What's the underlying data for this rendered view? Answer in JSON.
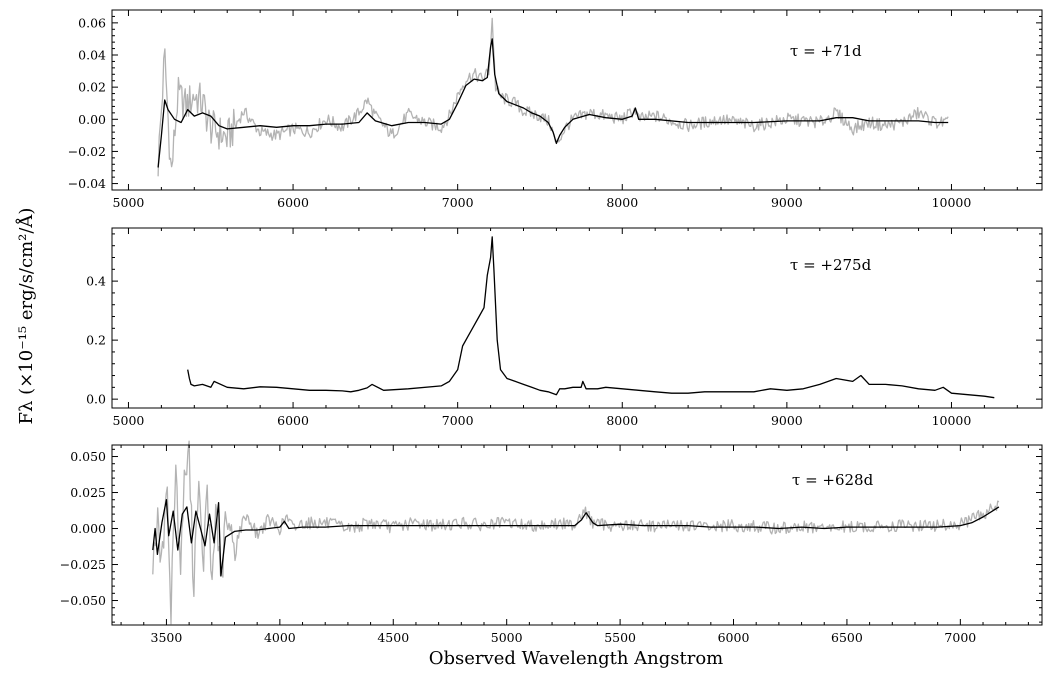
{
  "figure": {
    "ylabel": "Fλ (×10⁻¹⁵ erg/s/cm²/Å)",
    "xlabel": "Observed Wavelength Angstrom"
  },
  "colors": {
    "raw": "#b3b3b3",
    "smoothed": "#000000"
  },
  "chart_data": [
    {
      "type": "line",
      "label": "τ =  +71d",
      "xlim": [
        4900,
        10550
      ],
      "ylim": [
        -0.044,
        0.068
      ],
      "xticks": [
        5000,
        6000,
        7000,
        8000,
        9000,
        10000
      ],
      "yticks": [
        -0.04,
        -0.02,
        0.0,
        0.02,
        0.04,
        0.06
      ],
      "yticklabels": [
        "−0.04",
        "−0.02",
        "0.00",
        "0.02",
        "0.04",
        "0.06"
      ],
      "xrange": [
        5180,
        9980
      ],
      "series": [
        {
          "role": "raw",
          "x": [
            5180,
            5220,
            5260,
            5300,
            5350,
            5400,
            5450,
            5500,
            5600,
            5700,
            5800,
            5900,
            6000,
            6100,
            6200,
            6300,
            6400,
            6450,
            6500,
            6600,
            6700,
            6800,
            6900,
            6950,
            7000,
            7050,
            7100,
            7150,
            7190,
            7210,
            7230,
            7260,
            7300,
            7350,
            7400,
            7500,
            7560,
            7600,
            7650,
            7700,
            7800,
            7900,
            8000,
            8080,
            8100,
            8200,
            8400,
            8600,
            8800,
            9000,
            9200,
            9300,
            9400,
            9500,
            9600,
            9700,
            9800,
            9900,
            9980
          ],
          "y": [
            -0.028,
            0.04,
            -0.035,
            0.015,
            0.008,
            0.015,
            0.01,
            -0.005,
            -0.012,
            0.005,
            -0.008,
            -0.01,
            -0.006,
            -0.008,
            0.0,
            -0.005,
            0.004,
            0.012,
            0.002,
            -0.01,
            0.003,
            -0.002,
            -0.005,
            0.002,
            0.015,
            0.025,
            0.028,
            0.025,
            0.03,
            0.063,
            0.02,
            0.014,
            0.012,
            0.01,
            0.005,
            0.002,
            -0.002,
            -0.016,
            -0.006,
            0.0,
            0.004,
            0.002,
            0.0,
            0.006,
            0.0,
            0.002,
            -0.004,
            0.0,
            -0.004,
            0.0,
            -0.002,
            0.004,
            -0.006,
            -0.002,
            -0.004,
            -0.002,
            0.004,
            -0.002,
            -0.002
          ]
        },
        {
          "role": "smoothed",
          "x": [
            5180,
            5200,
            5220,
            5240,
            5280,
            5320,
            5360,
            5400,
            5450,
            5500,
            5550,
            5600,
            5700,
            5800,
            5900,
            6000,
            6100,
            6200,
            6300,
            6400,
            6450,
            6500,
            6600,
            6700,
            6800,
            6900,
            6950,
            7000,
            7050,
            7100,
            7150,
            7180,
            7200,
            7210,
            7225,
            7250,
            7300,
            7350,
            7400,
            7450,
            7500,
            7550,
            7580,
            7600,
            7620,
            7650,
            7700,
            7800,
            7900,
            8000,
            8060,
            8080,
            8100,
            8200,
            8400,
            8600,
            8800,
            9000,
            9200,
            9300,
            9400,
            9500,
            9600,
            9700,
            9800,
            9900,
            9980
          ],
          "y": [
            -0.03,
            -0.01,
            0.012,
            0.006,
            0.0,
            -0.002,
            0.006,
            0.002,
            0.004,
            0.002,
            -0.004,
            -0.006,
            -0.005,
            -0.004,
            -0.005,
            -0.004,
            -0.004,
            -0.003,
            -0.003,
            -0.002,
            0.004,
            -0.001,
            -0.004,
            -0.002,
            -0.002,
            -0.003,
            0.0,
            0.01,
            0.021,
            0.025,
            0.024,
            0.026,
            0.045,
            0.05,
            0.028,
            0.016,
            0.011,
            0.009,
            0.007,
            0.004,
            0.002,
            -0.002,
            -0.008,
            -0.015,
            -0.01,
            -0.005,
            0.0,
            0.003,
            0.001,
            0.0,
            0.002,
            0.007,
            0.0,
            0.0,
            -0.002,
            -0.002,
            -0.002,
            -0.001,
            -0.001,
            0.001,
            0.001,
            -0.001,
            -0.001,
            -0.001,
            -0.001,
            -0.002,
            -0.002
          ]
        }
      ]
    },
    {
      "type": "line",
      "label": "τ =  +275d",
      "xlim": [
        4900,
        10550
      ],
      "ylim": [
        -0.03,
        0.58
      ],
      "xticks": [
        5000,
        6000,
        7000,
        8000,
        9000,
        10000
      ],
      "yticks": [
        0.0,
        0.2,
        0.4
      ],
      "yticklabels": [
        "0.0",
        "0.2",
        "0.4"
      ],
      "xrange": [
        5360,
        10260
      ],
      "series": [
        {
          "role": "smoothed",
          "x": [
            5360,
            5370,
            5380,
            5400,
            5450,
            5500,
            5520,
            5600,
            5700,
            5800,
            5900,
            6000,
            6100,
            6200,
            6300,
            6350,
            6400,
            6450,
            6480,
            6550,
            6700,
            6900,
            6950,
            7000,
            7030,
            7060,
            7100,
            7130,
            7160,
            7180,
            7200,
            7210,
            7220,
            7240,
            7260,
            7300,
            7350,
            7400,
            7450,
            7500,
            7550,
            7600,
            7620,
            7650,
            7700,
            7750,
            7760,
            7780,
            7850,
            7900,
            8000,
            8100,
            8200,
            8300,
            8400,
            8500,
            8600,
            8700,
            8800,
            8900,
            9000,
            9100,
            9200,
            9300,
            9400,
            9450,
            9500,
            9600,
            9700,
            9800,
            9900,
            9950,
            10000,
            10100,
            10200,
            10260
          ],
          "y": [
            0.1,
            0.07,
            0.05,
            0.045,
            0.05,
            0.04,
            0.06,
            0.04,
            0.035,
            0.042,
            0.04,
            0.035,
            0.03,
            0.03,
            0.028,
            0.025,
            0.03,
            0.038,
            0.05,
            0.03,
            0.035,
            0.045,
            0.06,
            0.1,
            0.18,
            0.21,
            0.25,
            0.28,
            0.31,
            0.42,
            0.48,
            0.55,
            0.44,
            0.2,
            0.1,
            0.07,
            0.06,
            0.05,
            0.04,
            0.03,
            0.025,
            0.015,
            0.035,
            0.035,
            0.04,
            0.04,
            0.06,
            0.035,
            0.035,
            0.04,
            0.035,
            0.03,
            0.025,
            0.02,
            0.02,
            0.025,
            0.025,
            0.025,
            0.025,
            0.035,
            0.03,
            0.035,
            0.05,
            0.07,
            0.06,
            0.08,
            0.05,
            0.05,
            0.045,
            0.035,
            0.03,
            0.04,
            0.02,
            0.015,
            0.01,
            0.005
          ]
        }
      ]
    },
    {
      "type": "line",
      "label": "τ =  +628d",
      "xlim": [
        3260,
        7360
      ],
      "ylim": [
        -0.067,
        0.058
      ],
      "xticks": [
        3500,
        4000,
        4500,
        5000,
        5500,
        6000,
        6500,
        7000
      ],
      "yticks": [
        -0.05,
        -0.025,
        0.0,
        0.025,
        0.05
      ],
      "yticklabels": [
        "−0.050",
        "−0.025",
        "0.000",
        "0.025",
        "0.050"
      ],
      "xrange": [
        3440,
        7170
      ],
      "series": [
        {
          "role": "raw",
          "x": [
            3440,
            3460,
            3480,
            3500,
            3520,
            3540,
            3560,
            3580,
            3600,
            3620,
            3640,
            3660,
            3680,
            3700,
            3720,
            3740,
            3760,
            3800,
            3850,
            3900,
            3950,
            4000,
            4030,
            4060,
            4100,
            4200,
            4300,
            4400,
            4500,
            4600,
            4700,
            4800,
            4900,
            5000,
            5100,
            5200,
            5300,
            5340,
            5380,
            5400,
            5500,
            5600,
            5700,
            5800,
            5900,
            6000,
            6100,
            6200,
            6300,
            6400,
            6500,
            6600,
            6700,
            6800,
            6900,
            7000,
            7050,
            7100,
            7170
          ],
          "y": [
            -0.02,
            0.005,
            -0.03,
            0.04,
            -0.06,
            0.05,
            -0.03,
            0.035,
            0.052,
            -0.04,
            0.035,
            -0.03,
            0.025,
            -0.04,
            0.02,
            -0.047,
            0.005,
            -0.012,
            0.01,
            -0.004,
            0.006,
            0.0,
            0.008,
            0.0,
            0.004,
            0.004,
            0.0,
            0.004,
            0.001,
            0.004,
            0.002,
            0.004,
            0.002,
            0.004,
            0.002,
            0.003,
            0.003,
            0.013,
            0.004,
            0.003,
            0.002,
            0.002,
            0.002,
            0.002,
            0.001,
            0.002,
            0.001,
            0.0,
            0.001,
            0.0,
            0.001,
            0.001,
            0.002,
            0.002,
            0.002,
            0.003,
            0.006,
            0.01,
            0.017
          ]
        },
        {
          "role": "smoothed",
          "x": [
            3440,
            3450,
            3460,
            3480,
            3500,
            3510,
            3530,
            3550,
            3570,
            3590,
            3610,
            3630,
            3650,
            3670,
            3690,
            3710,
            3730,
            3740,
            3760,
            3800,
            3850,
            3900,
            3950,
            4000,
            4020,
            4040,
            4100,
            4200,
            4300,
            4400,
            4500,
            4600,
            4700,
            4800,
            4900,
            5000,
            5100,
            5200,
            5300,
            5330,
            5350,
            5380,
            5400,
            5500,
            5600,
            5700,
            5800,
            5900,
            6000,
            6100,
            6200,
            6300,
            6400,
            6500,
            6600,
            6700,
            6800,
            6900,
            7000,
            7050,
            7100,
            7150,
            7170
          ],
          "y": [
            -0.015,
            0.0,
            -0.018,
            0.004,
            0.02,
            -0.005,
            0.012,
            -0.015,
            0.01,
            0.015,
            -0.01,
            0.012,
            0.0,
            -0.012,
            0.01,
            -0.01,
            0.018,
            -0.033,
            -0.006,
            -0.002,
            -0.001,
            -0.001,
            0.0,
            0.001,
            0.005,
            0.0,
            0.001,
            0.001,
            0.002,
            0.002,
            0.002,
            0.002,
            0.002,
            0.002,
            0.002,
            0.002,
            0.002,
            0.002,
            0.002,
            0.006,
            0.011,
            0.004,
            0.002,
            0.003,
            0.002,
            0.002,
            0.002,
            0.001,
            0.001,
            0.001,
            0.0,
            0.001,
            0.0,
            0.001,
            0.001,
            0.001,
            0.001,
            0.001,
            0.002,
            0.004,
            0.008,
            0.013,
            0.015
          ]
        }
      ]
    }
  ]
}
